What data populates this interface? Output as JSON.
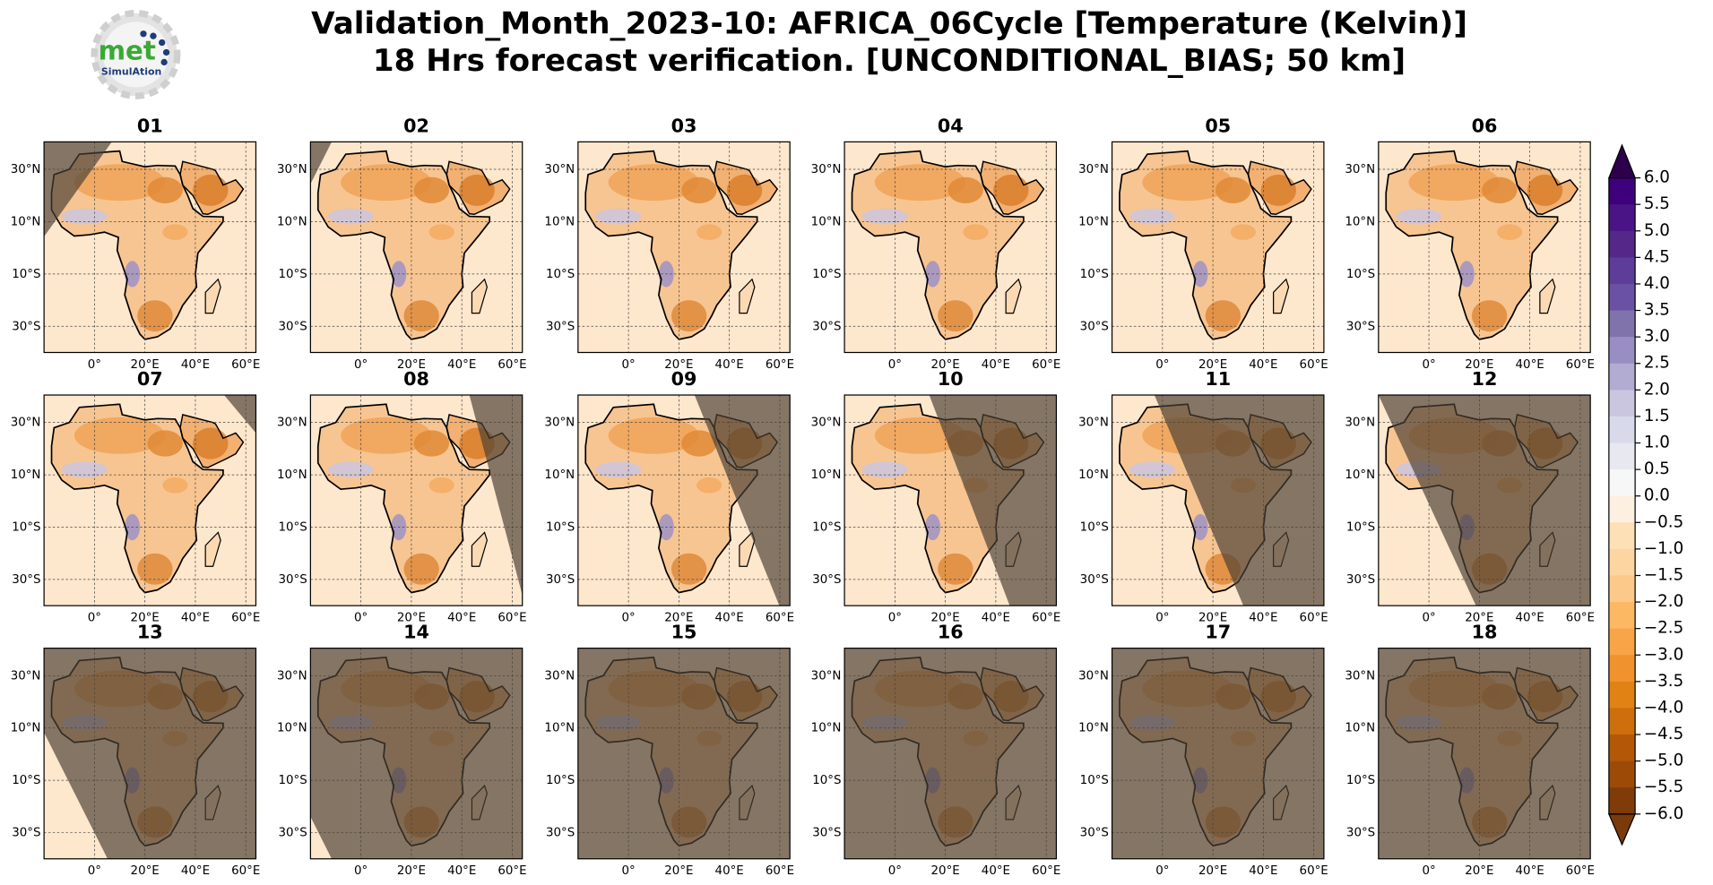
{
  "header": {
    "title": "Validation_Month_2023-10: AFRICA_06Cycle [Temperature (Kelvin)]",
    "subtitle": "18 Hrs forecast verification. [UNCONDITIONAL_BIAS; 50 km]"
  },
  "logo": {
    "name": "met",
    "tagline": "SimulAtion"
  },
  "panels": [
    "01",
    "02",
    "03",
    "04",
    "05",
    "06",
    "07",
    "08",
    "09",
    "10",
    "11",
    "12",
    "13",
    "14",
    "15",
    "16",
    "17",
    "18"
  ],
  "lat_labels": [
    "30°N",
    "10°N",
    "10°S",
    "30°S"
  ],
  "lon_labels": [
    "0°",
    "20°E",
    "40°E",
    "60°E"
  ],
  "colorbar": {
    "ticks": [
      {
        "value": 6,
        "label": "6.0"
      },
      5.5,
      {
        "value": 5,
        "label": "5.0"
      },
      4.5,
      {
        "value": 4,
        "label": "4.0"
      },
      3.5,
      {
        "value": 3,
        "label": "3.0"
      },
      2.5,
      {
        "value": 2,
        "label": "2.0"
      },
      1.5,
      {
        "value": 1,
        "label": "1.0"
      },
      0.5,
      {
        "value": 0,
        "label": "0.0"
      },
      {
        "value": -0.5,
        "label": "−0.5"
      },
      {
        "value": -1,
        "label": "−1.0"
      },
      {
        "value": -1.5,
        "label": "−1.5"
      },
      {
        "value": -2,
        "label": "−2.0"
      },
      {
        "value": -2.5,
        "label": "−2.5"
      },
      {
        "value": -3,
        "label": "−3.0"
      },
      {
        "value": -3.5,
        "label": "−3.5"
      },
      {
        "value": -4,
        "label": "−4.0"
      },
      {
        "value": -4.5,
        "label": "−4.5"
      },
      {
        "value": -5,
        "label": "−5.0"
      },
      {
        "value": -5.5,
        "label": "−5.5"
      },
      {
        "value": -6,
        "label": "−6.0"
      }
    ],
    "colors": [
      "#3f007d",
      "#4a1486",
      "#542788",
      "#5e3c99",
      "#6a51a3",
      "#8073ac",
      "#998ec3",
      "#b2abd2",
      "#cbc6e0",
      "#d8daeb",
      "#e8e8f1",
      "#f7f7f7",
      "#fdf0e0",
      "#fee0b6",
      "#fdd5a0",
      "#fdc98a",
      "#fdb863",
      "#f8a548",
      "#f0922e",
      "#e08214",
      "#cc6f0c",
      "#b35806",
      "#9c4b07",
      "#7f3b08"
    ],
    "extend_colors": [
      "#2d004b",
      "#7a3a0a"
    ]
  }
}
